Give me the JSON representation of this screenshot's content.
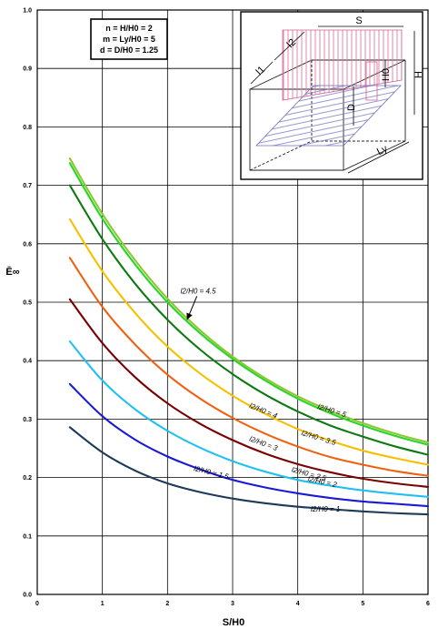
{
  "chart_data": {
    "type": "line",
    "title": "",
    "xlabel": "S/H0",
    "ylabel": "Ē∞",
    "xlim": [
      0,
      6
    ],
    "ylim": [
      0,
      1.0
    ],
    "xticks": [
      "0",
      "1",
      "2",
      "3",
      "4",
      "5",
      "6"
    ],
    "yticks": [
      "0.0",
      "0.1",
      "0.2",
      "0.3",
      "0.4",
      "0.5",
      "0.6",
      "0.7",
      "0.8",
      "0.9",
      "1.0"
    ],
    "grid": true,
    "parameters": [
      "n = H/H0 = 2",
      "m = Ly/H0 = 5",
      "d = D/H0 = 1.25"
    ],
    "series": [
      {
        "name": "l2/H0 = 1",
        "color": "#1c3a5a",
        "label": "l2/H0 = 1",
        "x": [
          0.5,
          1.0,
          1.5,
          2.0,
          2.5,
          3.0,
          3.5,
          4.0,
          4.5,
          5.0,
          5.5,
          6.0
        ],
        "y": [
          0.286,
          0.243,
          0.212,
          0.19,
          0.175,
          0.164,
          0.156,
          0.15,
          0.146,
          0.142,
          0.139,
          0.137
        ]
      },
      {
        "name": "l2/H0 = 1.5",
        "color": "#1a1ad6",
        "label": "l2/H0 = 1.5",
        "x": [
          0.5,
          1.0,
          1.5,
          2.0,
          2.5,
          3.0,
          3.5,
          4.0,
          4.5,
          5.0,
          5.5,
          6.0
        ],
        "y": [
          0.36,
          0.305,
          0.265,
          0.236,
          0.214,
          0.196,
          0.183,
          0.173,
          0.165,
          0.159,
          0.155,
          0.151
        ]
      },
      {
        "name": "l2/H0 = 2",
        "color": "#22c0f0",
        "label": "l2/H0 = 2",
        "x": [
          0.5,
          1.0,
          1.5,
          2.0,
          2.5,
          3.0,
          3.5,
          4.0,
          4.5,
          5.0,
          5.5,
          6.0
        ],
        "y": [
          0.433,
          0.366,
          0.317,
          0.28,
          0.251,
          0.228,
          0.21,
          0.196,
          0.186,
          0.178,
          0.172,
          0.167
        ]
      },
      {
        "name": "l2/H0 = 2.5",
        "color": "#7a0000",
        "label": "l2/H0 = 2.5",
        "x": [
          0.5,
          1.0,
          1.5,
          2.0,
          2.5,
          3.0,
          3.5,
          4.0,
          4.5,
          5.0,
          5.5,
          6.0
        ],
        "y": [
          0.505,
          0.43,
          0.372,
          0.327,
          0.292,
          0.264,
          0.241,
          0.223,
          0.209,
          0.198,
          0.19,
          0.184
        ]
      },
      {
        "name": "l2/H0 = 3",
        "color": "#f06010",
        "label": "l2/H0 = 3",
        "x": [
          0.5,
          1.0,
          1.5,
          2.0,
          2.5,
          3.0,
          3.5,
          4.0,
          4.5,
          5.0,
          5.5,
          6.0
        ],
        "y": [
          0.576,
          0.492,
          0.428,
          0.376,
          0.335,
          0.302,
          0.275,
          0.253,
          0.235,
          0.222,
          0.211,
          0.203
        ]
      },
      {
        "name": "l2/H0 = 3.5",
        "color": "#f5c000",
        "label": "l2/H0 = 3.5",
        "x": [
          0.5,
          1.0,
          1.5,
          2.0,
          2.5,
          3.0,
          3.5,
          4.0,
          4.5,
          5.0,
          5.5,
          6.0
        ],
        "y": [
          0.642,
          0.553,
          0.482,
          0.424,
          0.378,
          0.34,
          0.309,
          0.283,
          0.263,
          0.246,
          0.233,
          0.222
        ]
      },
      {
        "name": "l2/H0 = 4",
        "color": "#0c7a10",
        "label": "l2/H0 = 4",
        "x": [
          0.5,
          1.0,
          1.5,
          2.0,
          2.5,
          3.0,
          3.5,
          4.0,
          4.5,
          5.0,
          5.5,
          6.0
        ],
        "y": [
          0.7,
          0.608,
          0.532,
          0.47,
          0.419,
          0.377,
          0.342,
          0.313,
          0.289,
          0.27,
          0.253,
          0.239
        ]
      },
      {
        "name": "l2/H0 = 4.5",
        "color": "#2ad42a",
        "label": "l2/H0 = 4.5",
        "x": [
          0.5,
          1.0,
          1.5,
          2.0,
          2.5,
          3.0,
          3.5,
          4.0,
          4.5,
          5.0,
          5.5,
          6.0
        ],
        "y": [
          0.738,
          0.643,
          0.565,
          0.5,
          0.447,
          0.403,
          0.366,
          0.335,
          0.31,
          0.289,
          0.271,
          0.256
        ]
      },
      {
        "name": "l2/H0 = 5",
        "color": "#8cc830",
        "label": "l2/H0 = 5",
        "x": [
          0.5,
          1.0,
          1.5,
          2.0,
          2.5,
          3.0,
          3.5,
          4.0,
          4.5,
          5.0,
          5.5,
          6.0
        ],
        "y": [
          0.746,
          0.651,
          0.572,
          0.506,
          0.452,
          0.407,
          0.37,
          0.339,
          0.314,
          0.293,
          0.275,
          0.26
        ]
      }
    ],
    "annotations": [
      {
        "text": "l2/H0 = 4.5",
        "at": [
          2.2,
          0.515
        ],
        "arrow_to": [
          2.3,
          0.47
        ]
      },
      {
        "text": "l2/H0 = 5",
        "at": [
          4.3,
          0.318
        ]
      },
      {
        "text": "l2/H0 = 4",
        "at": [
          3.25,
          0.32
        ]
      },
      {
        "text": "l2/H0 = 3.5",
        "at": [
          4.05,
          0.273
        ]
      },
      {
        "text": "l2/H0 = 3",
        "at": [
          3.25,
          0.263
        ]
      },
      {
        "text": "l2/H0 = 2.5",
        "at": [
          3.9,
          0.21
        ]
      },
      {
        "text": "l2/H0 = 2",
        "at": [
          4.15,
          0.194
        ]
      },
      {
        "text": "l2/H0 = 1.5",
        "at": [
          2.4,
          0.212
        ]
      },
      {
        "text": "l2/H0 = 1",
        "at": [
          4.2,
          0.142
        ]
      }
    ],
    "inset_labels": [
      "S",
      "l2",
      "l1",
      "H0",
      "H",
      "D",
      "Ly"
    ]
  }
}
